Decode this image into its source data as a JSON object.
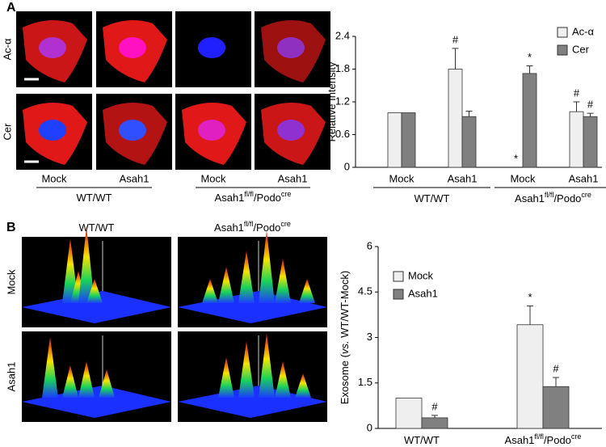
{
  "panels": [
    {
      "label": "A"
    },
    {
      "label": "B"
    }
  ],
  "images_a": {
    "rows": [
      "Ac-α",
      "Cer"
    ],
    "columns": [
      "Mock",
      "Asah1",
      "Mock",
      "Asah1"
    ],
    "groups": [
      [
        {
          "text": "WT/WT"
        }
      ],
      [
        {
          "text": "Asah1"
        },
        {
          "text": "fl/fl",
          "sup": true
        },
        {
          "text": "/Podo"
        },
        {
          "text": "cre",
          "sup": true
        }
      ]
    ]
  },
  "images_b": {
    "rows": [
      "Mock",
      "Asah1"
    ],
    "columns": [
      [
        {
          "text": "WT/WT"
        }
      ],
      [
        {
          "text": "Asah1"
        },
        {
          "text": "fl/fl",
          "sup": true
        },
        {
          "text": "/Podo"
        },
        {
          "text": "cre",
          "sup": true
        }
      ]
    ]
  },
  "chart_data": [
    {
      "type": "bar",
      "ylabel": [
        {
          "text": "Relative Intensity"
        }
      ],
      "categories": [
        "Mock",
        "Asah1",
        "Mock",
        "Asah1"
      ],
      "groups": [
        [
          {
            "text": "WT/WT"
          }
        ],
        [
          {
            "text": "Asah1"
          },
          {
            "text": "fl/fl",
            "sup": true
          },
          {
            "text": "/Podo"
          },
          {
            "text": "cre",
            "sup": true
          }
        ]
      ],
      "series": [
        {
          "name": "Ac-α",
          "color": "#efefef",
          "values": [
            1,
            1.8,
            0,
            1.02
          ],
          "errors": [
            null,
            0.38,
            null,
            0.18
          ],
          "markers": [
            null,
            "#",
            "*",
            "#"
          ]
        },
        {
          "name": "Cer",
          "color": "#808080",
          "values": [
            1,
            0.93,
            1.72,
            0.93
          ],
          "errors": [
            null,
            0.1,
            0.14,
            0.06
          ],
          "markers": [
            null,
            null,
            "*",
            "#"
          ]
        }
      ],
      "ylim": [
        0,
        2.4
      ],
      "yticks": [
        0,
        0.6,
        1.2,
        1.8,
        2.4
      ],
      "legend": "top-right"
    },
    {
      "type": "bar",
      "ylabel": [
        {
          "text": "Exosome ("
        },
        {
          "text": "vs.",
          "italic": true
        },
        {
          "text": " WT/WT-Mock)"
        }
      ],
      "categories": [
        [
          {
            "text": "WT/WT"
          }
        ],
        [
          {
            "text": "Asah1"
          },
          {
            "text": "fl/fl",
            "sup": true
          },
          {
            "text": "/Podo"
          },
          {
            "text": "cre",
            "sup": true
          }
        ]
      ],
      "series": [
        {
          "name": "Mock",
          "color": "#efefef",
          "values": [
            1,
            3.42
          ],
          "errors": [
            null,
            0.62
          ],
          "markers": [
            null,
            "*"
          ]
        },
        {
          "name": "Asah1",
          "color": "#808080",
          "values": [
            0.35,
            1.38
          ],
          "errors": [
            0.08,
            0.3
          ],
          "markers": [
            "#",
            "#"
          ]
        }
      ],
      "ylim": [
        0,
        6
      ],
      "yticks": [
        0,
        1.5,
        3,
        4.5,
        6
      ],
      "legend": "top-left"
    }
  ]
}
